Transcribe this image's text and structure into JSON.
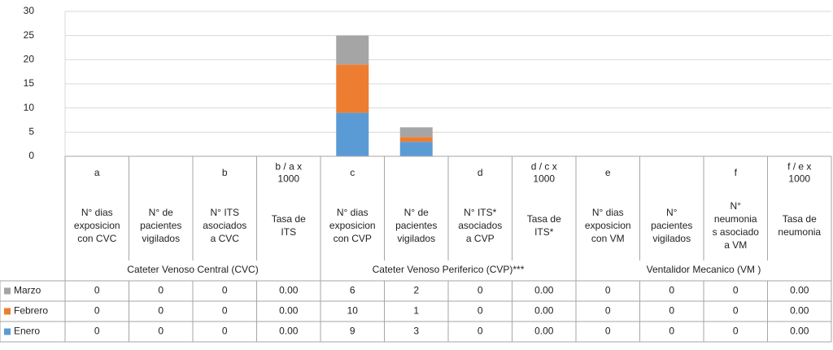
{
  "chart_data": {
    "type": "stacked_bar",
    "ylim": [
      0,
      30
    ],
    "yticks": [
      0,
      5,
      10,
      15,
      20,
      25,
      30
    ],
    "grid": true,
    "codes": [
      [
        "a"
      ],
      null,
      [
        "b"
      ],
      [
        "b / a x",
        "1000"
      ],
      [
        "c"
      ],
      null,
      [
        "d"
      ],
      [
        "d / c x",
        "1000"
      ],
      [
        "e"
      ],
      null,
      [
        "f"
      ],
      [
        "f / e x",
        "1000"
      ]
    ],
    "categories": [
      [
        "N° dias",
        "exposicion",
        "con CVC"
      ],
      [
        "N° de",
        "pacientes",
        "vigilados"
      ],
      [
        "N° ITS",
        "asociados",
        "a CVC"
      ],
      [
        "Tasa de",
        "ITS"
      ],
      [
        "N° dias",
        "exposicion",
        "con CVP"
      ],
      [
        "N° de",
        "pacientes",
        "vigilados"
      ],
      [
        "N° ITS*",
        "asociados",
        "a CVP"
      ],
      [
        "Tasa de",
        "ITS*"
      ],
      [
        "N° dias",
        "exposicion",
        "con VM"
      ],
      [
        "N°",
        "pacientes",
        "vigilados"
      ],
      [
        "N°",
        "neumonia",
        "s asociado",
        "a VM"
      ],
      [
        "Tasa de",
        "neumonia"
      ]
    ],
    "groups": [
      "Cateter Venoso  Central (CVC)",
      "Cateter Venoso Periferico (CVP)***",
      "Ventalidor Mecanico (VM )"
    ],
    "series": [
      {
        "name": "Enero",
        "color": "#5b9bd5",
        "values": [
          0,
          0,
          0,
          0,
          9,
          3,
          0,
          0,
          0,
          0,
          0,
          0
        ],
        "value_labels": [
          "0",
          "0",
          "0",
          "0.00",
          "9",
          "3",
          "0",
          "0.00",
          "0",
          "0",
          "0",
          "0.00"
        ]
      },
      {
        "name": "Febrero",
        "color": "#ed7d31",
        "values": [
          0,
          0,
          0,
          0,
          10,
          1,
          0,
          0,
          0,
          0,
          0,
          0
        ],
        "value_labels": [
          "0",
          "0",
          "0",
          "0.00",
          "10",
          "1",
          "0",
          "0.00",
          "0",
          "0",
          "0",
          "0.00"
        ]
      },
      {
        "name": "Marzo",
        "color": "#a5a5a5",
        "values": [
          0,
          0,
          0,
          0,
          6,
          2,
          0,
          0,
          0,
          0,
          0,
          0
        ],
        "value_labels": [
          "0",
          "0",
          "0",
          "0.00",
          "6",
          "2",
          "0",
          "0.00",
          "0",
          "0",
          "0",
          "0.00"
        ]
      }
    ]
  }
}
